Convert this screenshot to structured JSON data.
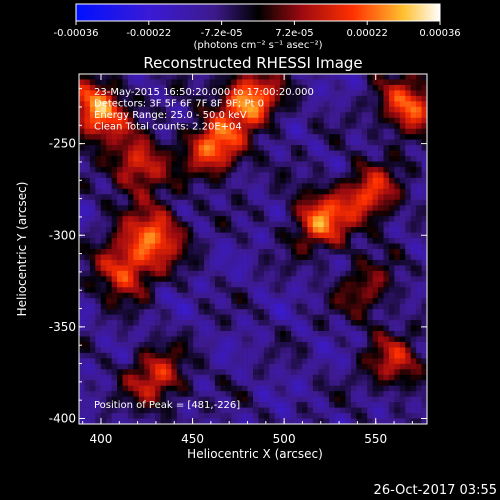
{
  "chart_data": {
    "type": "heatmap",
    "title": "Reconstructed RHESSI Image",
    "xlabel": "Heliocentric X (arcsec)",
    "ylabel": "Heliocentric Y (arcsec)",
    "xlim": [
      388,
      578
    ],
    "ylim": [
      -403,
      -212
    ],
    "x_ticks": [
      "400",
      "450",
      "500",
      "550"
    ],
    "y_ticks": [
      "-250",
      "-300",
      "-350",
      "-400"
    ],
    "grid": false,
    "colorbar": {
      "position": "top",
      "vmin": -0.00036,
      "vmax": 0.00036,
      "tick_labels": [
        "-0.00036",
        "-0.00022",
        "-7.2e-05",
        "7.2e-05",
        "0.00022",
        "0.00036"
      ],
      "unit_label": "(photons cm⁻² s⁻¹ asec⁻²)"
    },
    "info": [
      "23-May-2015 16:50:20.000 to 17:00:20.000",
      "Detectors: 3F 5F 6F 7F 8F 9F; Pt 0",
      "Energy Range: 25.0 - 50.0 keV",
      "Clean    Total counts: 2.20E+04"
    ],
    "peak_label": "Position of Peak = [481,-226]",
    "peak": [
      481,
      -226
    ],
    "bright_features": [
      {
        "x": 398,
        "y": -232,
        "intensity": 0.00036
      },
      {
        "x": 420,
        "y": -262,
        "intensity": 0.00026
      },
      {
        "x": 462,
        "y": -252,
        "intensity": 0.00032
      },
      {
        "x": 481,
        "y": -226,
        "intensity": 0.00036
      },
      {
        "x": 430,
        "y": -300,
        "intensity": 0.0003
      },
      {
        "x": 412,
        "y": -318,
        "intensity": 0.00028
      },
      {
        "x": 520,
        "y": -292,
        "intensity": 0.0003
      },
      {
        "x": 547,
        "y": -278,
        "intensity": 0.00026
      },
      {
        "x": 568,
        "y": -230,
        "intensity": 0.0003
      },
      {
        "x": 430,
        "y": -378,
        "intensity": 0.00024
      },
      {
        "x": 560,
        "y": -370,
        "intensity": 0.0002
      },
      {
        "x": 545,
        "y": -330,
        "intensity": 0.00016
      }
    ]
  },
  "footer": {
    "timestamp": "26-Oct-2017 03:55"
  }
}
